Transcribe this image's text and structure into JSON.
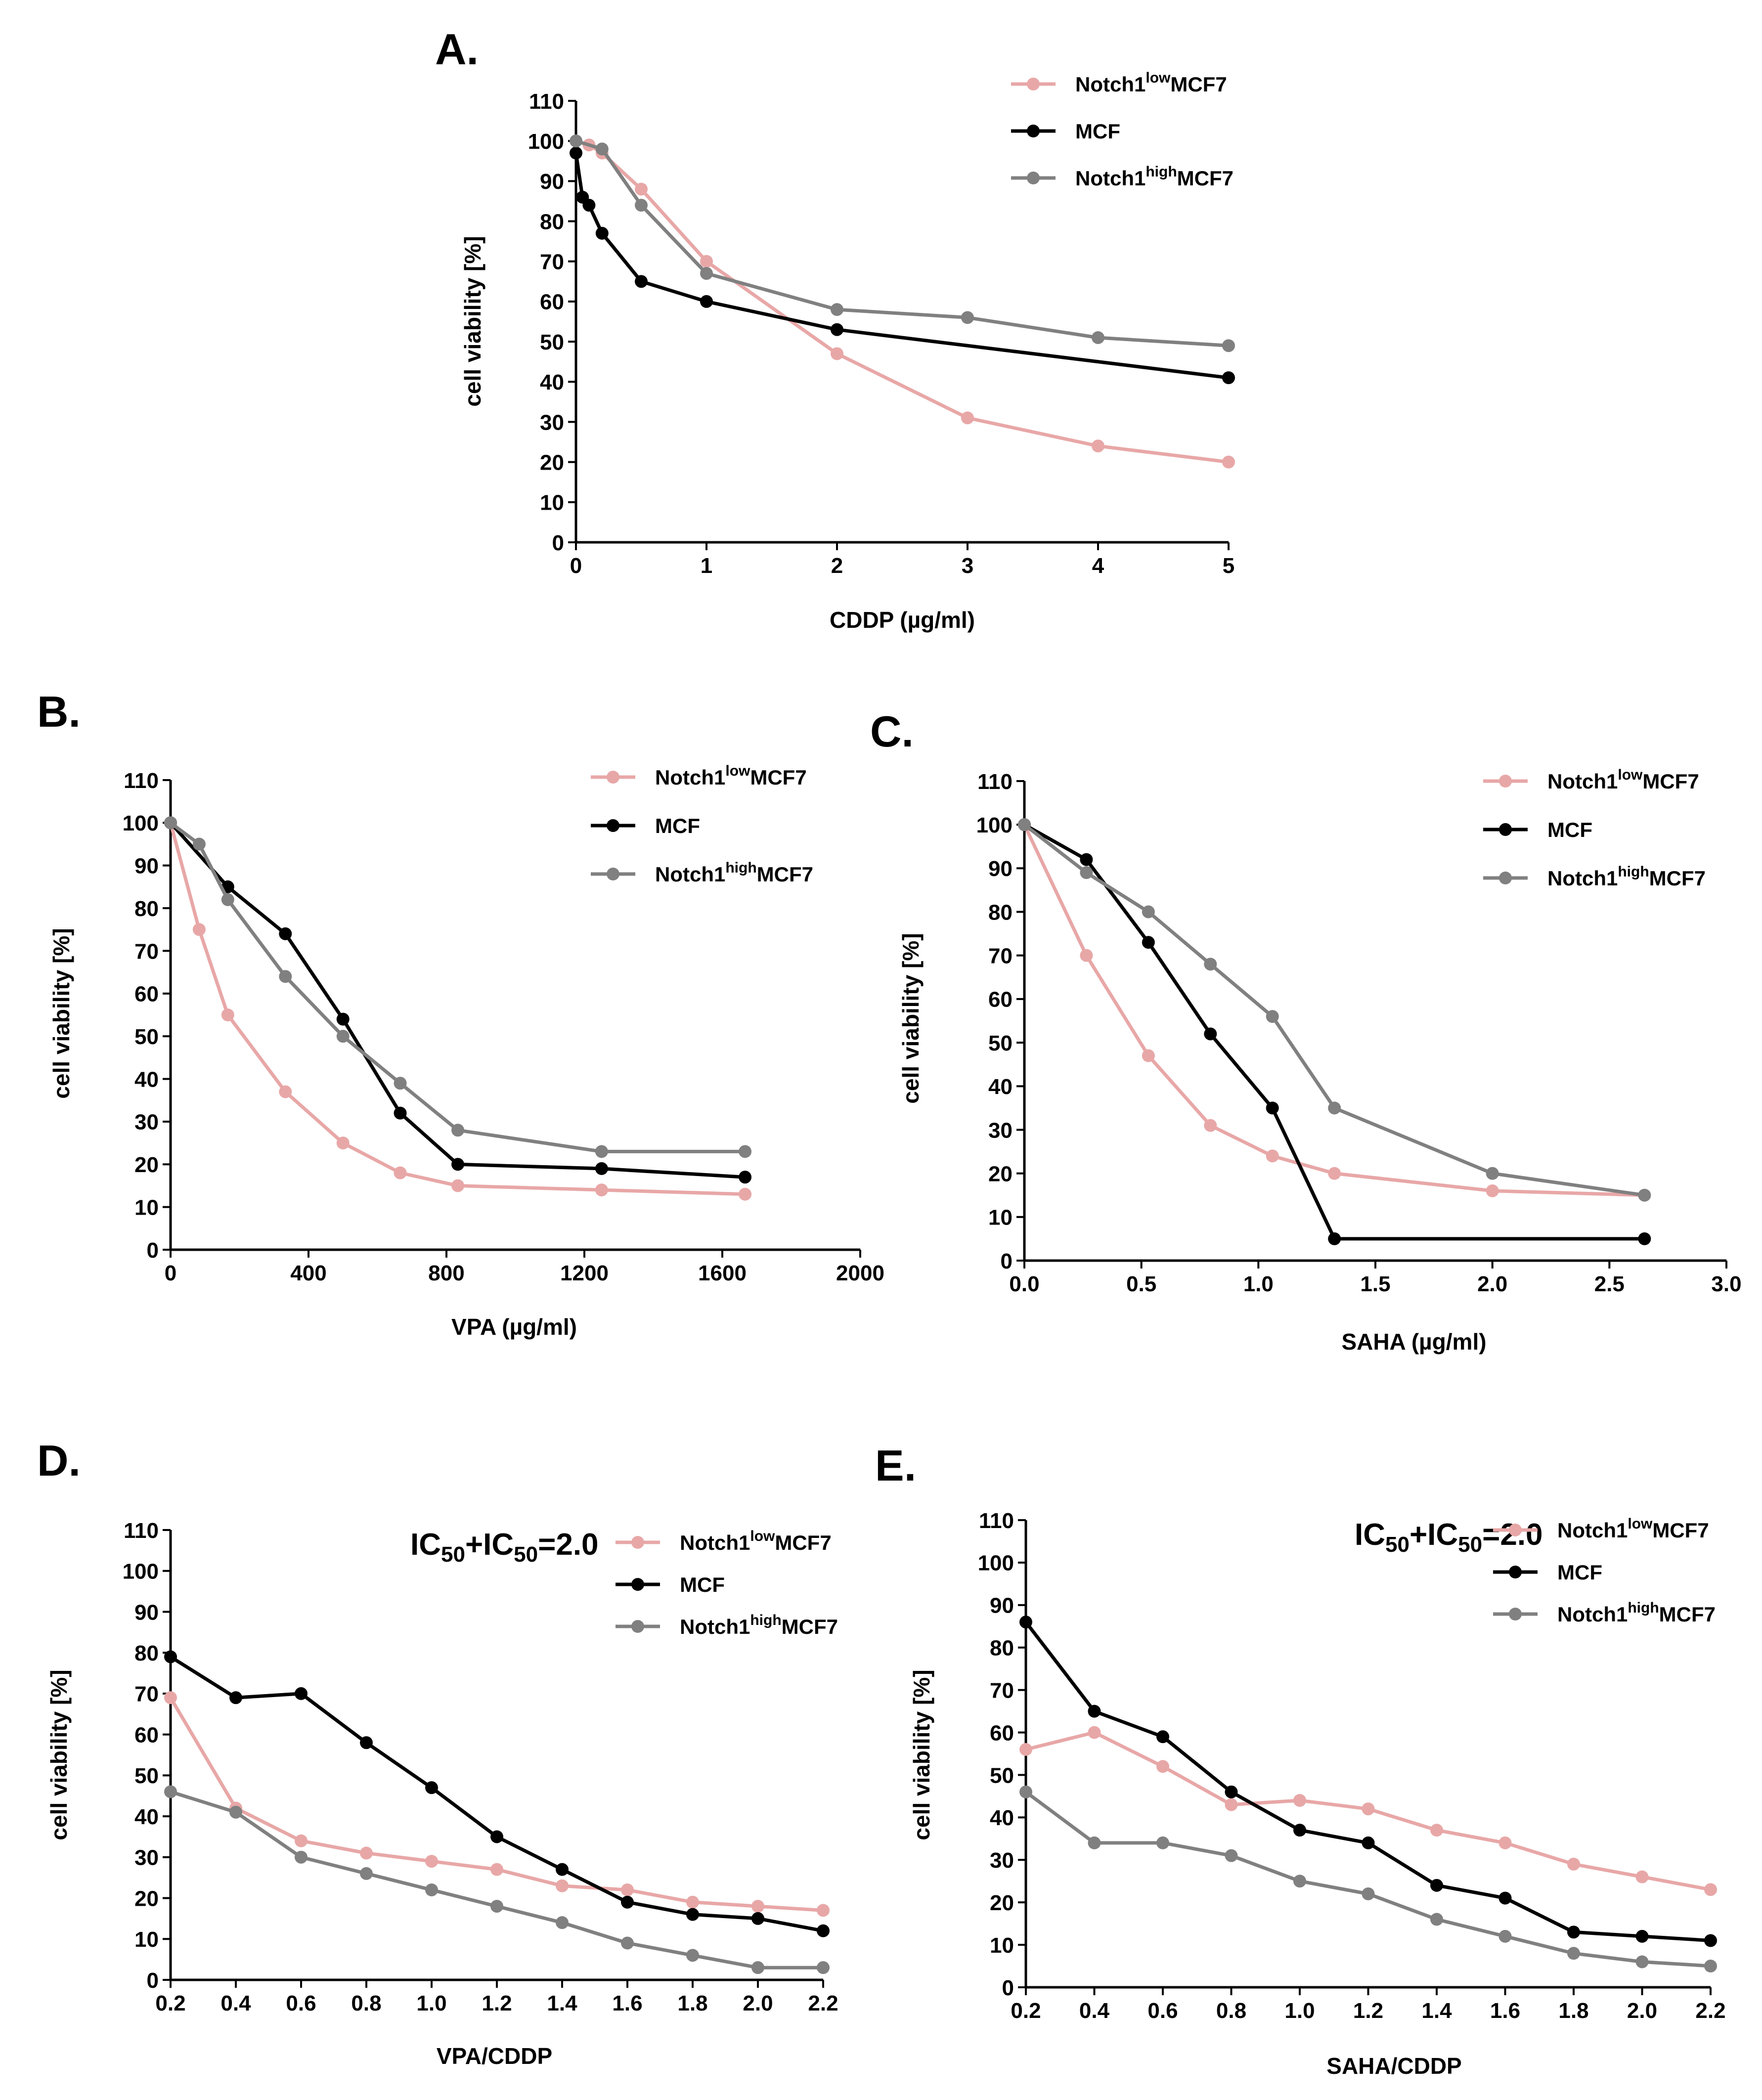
{
  "colors": {
    "low": "#e8a7a7",
    "mcf": "#000000",
    "high": "#808080"
  },
  "chart_data": [
    {
      "panel": "A.",
      "type": "line",
      "xlabel": "CDDP (µg/ml)",
      "ylabel": "cell viability [%]",
      "xlim": [
        0,
        5
      ],
      "ylim": [
        0,
        110
      ],
      "xticks": [
        0,
        1,
        2,
        3,
        4,
        5
      ],
      "xtick_labels": [
        "0",
        "1",
        "2",
        "3",
        "4",
        "5"
      ],
      "yticks": [
        0,
        10,
        20,
        30,
        40,
        50,
        60,
        70,
        80,
        90,
        100,
        110
      ],
      "annotation": "",
      "series": [
        {
          "key": "low",
          "name_main": "Notch1",
          "name_sup": "low",
          "name_end": "MCF7",
          "color": "#e8a7a7",
          "x": [
            0,
            0.1,
            0.2,
            0.5,
            1,
            2,
            3,
            4,
            5
          ],
          "y": [
            100,
            99,
            97,
            88,
            70,
            47,
            31,
            24,
            20
          ]
        },
        {
          "key": "mcf",
          "name_main": "MCF",
          "name_sup": "",
          "name_end": "",
          "color": "#000000",
          "x": [
            0,
            0.05,
            0.1,
            0.2,
            0.5,
            1,
            2,
            5
          ],
          "y": [
            97,
            86,
            84,
            77,
            65,
            60,
            53,
            41
          ]
        },
        {
          "key": "high",
          "name_main": "Notch1",
          "name_sup": "high",
          "name_end": "MCF7",
          "color": "#808080",
          "x": [
            0,
            0.2,
            0.5,
            1,
            2,
            3,
            4,
            5
          ],
          "y": [
            100,
            98,
            84,
            67,
            58,
            56,
            51,
            49
          ]
        }
      ]
    },
    {
      "panel": "B.",
      "type": "line",
      "xlabel": "VPA (µg/ml)",
      "ylabel": "cell viability [%]",
      "xlim": [
        0,
        2000
      ],
      "ylim": [
        0,
        110
      ],
      "xticks": [
        0,
        400,
        800,
        1200,
        1600,
        2000
      ],
      "xtick_labels": [
        "0",
        "400",
        "800",
        "1200",
        "1600",
        "2000"
      ],
      "yticks": [
        0,
        10,
        20,
        30,
        40,
        50,
        60,
        70,
        80,
        90,
        100,
        110
      ],
      "annotation": "",
      "series": [
        {
          "key": "low",
          "name_main": "Notch1",
          "name_sup": "low",
          "name_end": "MCF7",
          "color": "#e8a7a7",
          "x": [
            0,
            83,
            166,
            333,
            500,
            666,
            833,
            1250,
            1666
          ],
          "y": [
            100,
            75,
            55,
            37,
            25,
            18,
            15,
            14,
            13
          ]
        },
        {
          "key": "mcf",
          "name_main": "MCF",
          "name_sup": "",
          "name_end": "",
          "color": "#000000",
          "x": [
            0,
            166,
            333,
            500,
            666,
            833,
            1250,
            1666
          ],
          "y": [
            100,
            85,
            74,
            54,
            32,
            20,
            19,
            17
          ]
        },
        {
          "key": "high",
          "name_main": "Notch1",
          "name_sup": "high",
          "name_end": "MCF7",
          "color": "#808080",
          "x": [
            0,
            83,
            166,
            333,
            500,
            666,
            833,
            1250,
            1666
          ],
          "y": [
            100,
            95,
            82,
            64,
            50,
            39,
            28,
            23,
            23
          ]
        }
      ]
    },
    {
      "panel": "C.",
      "type": "line",
      "xlabel": "SAHA (µg/ml)",
      "ylabel": "cell viability [%]",
      "xlim": [
        0,
        3
      ],
      "ylim": [
        0,
        110
      ],
      "xticks": [
        0,
        0.5,
        1,
        1.5,
        2,
        2.5,
        3
      ],
      "xtick_labels": [
        "0.0",
        "0.5",
        "1.0",
        "1.5",
        "2.0",
        "2.5",
        "3.0"
      ],
      "yticks": [
        0,
        10,
        20,
        30,
        40,
        50,
        60,
        70,
        80,
        90,
        100,
        110
      ],
      "annotation": "",
      "series": [
        {
          "key": "low",
          "name_main": "Notch1",
          "name_sup": "low",
          "name_end": "MCF7",
          "color": "#e8a7a7",
          "x": [
            0,
            0.265,
            0.53,
            0.795,
            1.06,
            1.325,
            2,
            2.65
          ],
          "y": [
            100,
            70,
            47,
            31,
            24,
            20,
            16,
            15
          ]
        },
        {
          "key": "mcf",
          "name_main": "MCF",
          "name_sup": "",
          "name_end": "",
          "color": "#000000",
          "x": [
            0,
            0.265,
            0.53,
            0.795,
            1.06,
            1.325,
            2.65
          ],
          "y": [
            100,
            92,
            73,
            52,
            35,
            5,
            5
          ]
        },
        {
          "key": "high",
          "name_main": "Notch1",
          "name_sup": "high",
          "name_end": "MCF7",
          "color": "#808080",
          "x": [
            0,
            0.265,
            0.53,
            0.795,
            1.06,
            1.325,
            2,
            2.65
          ],
          "y": [
            100,
            89,
            80,
            68,
            56,
            35,
            20,
            15
          ]
        }
      ]
    },
    {
      "panel": "D.",
      "type": "line",
      "xlabel": "VPA/CDDP",
      "ylabel": "cell viability [%]",
      "xlim": [
        0.2,
        2.2
      ],
      "ylim": [
        0,
        110
      ],
      "xticks": [
        0.2,
        0.4,
        0.6,
        0.8,
        1.0,
        1.2,
        1.4,
        1.6,
        1.8,
        2.0,
        2.2
      ],
      "xtick_labels": [
        "0.2",
        "0.4",
        "0.6",
        "0.8",
        "1.0",
        "1.2",
        "1.4",
        "1.6",
        "1.8",
        "2.0",
        "2.2"
      ],
      "yticks": [
        0,
        10,
        20,
        30,
        40,
        50,
        60,
        70,
        80,
        90,
        100,
        110
      ],
      "annotation": "IC50+IC50=2.0",
      "series": [
        {
          "key": "low",
          "name_main": "Notch1",
          "name_sup": "low",
          "name_end": "MCF7",
          "color": "#e8a7a7",
          "x": [
            0.2,
            0.4,
            0.6,
            0.8,
            1.0,
            1.2,
            1.4,
            1.6,
            1.8,
            2.0,
            2.2
          ],
          "y": [
            69,
            42,
            34,
            31,
            29,
            27,
            23,
            22,
            19,
            18,
            17
          ]
        },
        {
          "key": "mcf",
          "name_main": "MCF",
          "name_sup": "",
          "name_end": "",
          "color": "#000000",
          "x": [
            0.2,
            0.4,
            0.6,
            0.8,
            1.0,
            1.2,
            1.4,
            1.6,
            1.8,
            2.0,
            2.2
          ],
          "y": [
            79,
            69,
            70,
            58,
            47,
            35,
            27,
            19,
            16,
            15,
            12
          ]
        },
        {
          "key": "high",
          "name_main": "Notch1",
          "name_sup": "high",
          "name_end": "MCF7",
          "color": "#808080",
          "x": [
            0.2,
            0.4,
            0.6,
            0.8,
            1.0,
            1.2,
            1.4,
            1.6,
            1.8,
            2.0,
            2.2
          ],
          "y": [
            46,
            41,
            30,
            26,
            22,
            18,
            14,
            9,
            6,
            3,
            3
          ]
        }
      ]
    },
    {
      "panel": "E.",
      "type": "line",
      "xlabel": "SAHA/CDDP",
      "ylabel": "cell viability [%]",
      "xlim": [
        0.2,
        2.2
      ],
      "ylim": [
        0,
        110
      ],
      "xticks": [
        0.2,
        0.4,
        0.6,
        0.8,
        1.0,
        1.2,
        1.4,
        1.6,
        1.8,
        2.0,
        2.2
      ],
      "xtick_labels": [
        "0.2",
        "0.4",
        "0.6",
        "0.8",
        "1.0",
        "1.2",
        "1.4",
        "1.6",
        "1.8",
        "2.0",
        "2.2"
      ],
      "yticks": [
        0,
        10,
        20,
        30,
        40,
        50,
        60,
        70,
        80,
        90,
        100,
        110
      ],
      "annotation": "IC50+IC50=2.0",
      "series": [
        {
          "key": "low",
          "name_main": "Notch1",
          "name_sup": "low",
          "name_end": "MCF7",
          "color": "#e8a7a7",
          "x": [
            0.2,
            0.4,
            0.6,
            0.8,
            1.0,
            1.2,
            1.4,
            1.6,
            1.8,
            2.0,
            2.2
          ],
          "y": [
            56,
            60,
            52,
            43,
            44,
            42,
            37,
            34,
            29,
            26,
            23
          ]
        },
        {
          "key": "mcf",
          "name_main": "MCF",
          "name_sup": "",
          "name_end": "",
          "color": "#000000",
          "x": [
            0.2,
            0.4,
            0.6,
            0.8,
            1.0,
            1.2,
            1.4,
            1.6,
            1.8,
            2.0,
            2.2
          ],
          "y": [
            86,
            65,
            59,
            46,
            37,
            34,
            24,
            21,
            13,
            12,
            11
          ]
        },
        {
          "key": "high",
          "name_main": "Notch1",
          "name_sup": "high",
          "name_end": "MCF7",
          "color": "#808080",
          "x": [
            0.2,
            0.4,
            0.6,
            0.8,
            1.0,
            1.2,
            1.4,
            1.6,
            1.8,
            2.0,
            2.2
          ],
          "y": [
            46,
            34,
            34,
            31,
            25,
            22,
            16,
            12,
            8,
            6,
            5
          ]
        }
      ]
    }
  ]
}
